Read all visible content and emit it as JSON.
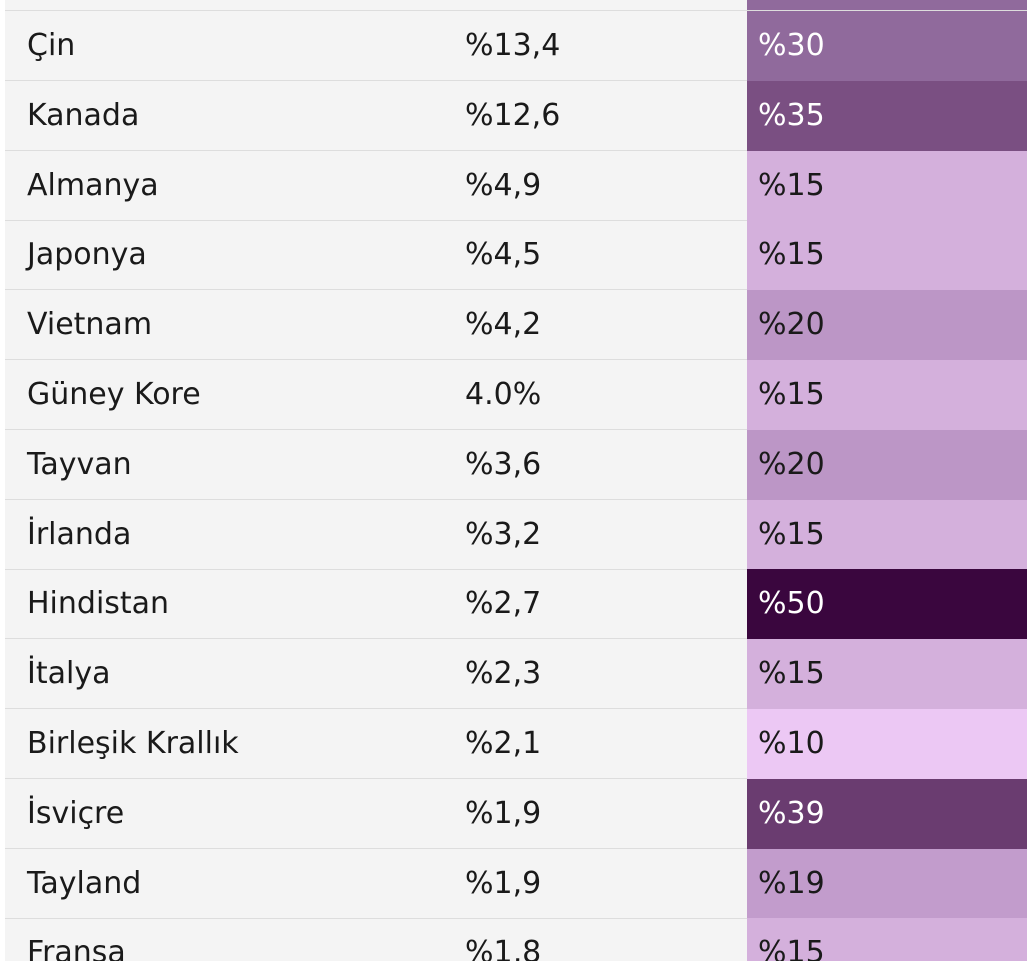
{
  "table": {
    "top_stub": {
      "tariff_color": "#906a9c"
    },
    "rows": [
      {
        "country": "Çin",
        "share": "%13,4",
        "tariff": "%30",
        "tariff_bg": "#906a9c",
        "tariff_fg": "#ffffff"
      },
      {
        "country": "Kanada",
        "share": "%12,6",
        "tariff": "%35",
        "tariff_bg": "#7a4f82",
        "tariff_fg": "#ffffff"
      },
      {
        "country": "Almanya",
        "share": "%4,9",
        "tariff": "%15",
        "tariff_bg": "#d4b0dc",
        "tariff_fg": "#1a1a1a"
      },
      {
        "country": "Japonya",
        "share": "%4,5",
        "tariff": "%15",
        "tariff_bg": "#d4b0dc",
        "tariff_fg": "#1a1a1a"
      },
      {
        "country": "Vietnam",
        "share": "%4,2",
        "tariff": "%20",
        "tariff_bg": "#bc96c6",
        "tariff_fg": "#1a1a1a"
      },
      {
        "country": "Güney Kore",
        "share": "4.0%",
        "tariff": "%15",
        "tariff_bg": "#d4b0dc",
        "tariff_fg": "#1a1a1a"
      },
      {
        "country": "Tayvan",
        "share": "%3,6",
        "tariff": "%20",
        "tariff_bg": "#bc96c6",
        "tariff_fg": "#1a1a1a"
      },
      {
        "country": "İrlanda",
        "share": "%3,2",
        "tariff": "%15",
        "tariff_bg": "#d4b0dc",
        "tariff_fg": "#1a1a1a"
      },
      {
        "country": "Hindistan",
        "share": "%2,7",
        "tariff": "%50",
        "tariff_bg": "#3a063e",
        "tariff_fg": "#ffffff"
      },
      {
        "country": "İtalya",
        "share": "%2,3",
        "tariff": "%15",
        "tariff_bg": "#d4b0dc",
        "tariff_fg": "#1a1a1a"
      },
      {
        "country": "Birleşik Krallık",
        "share": "%2,1",
        "tariff": "%10",
        "tariff_bg": "#ecc8f4",
        "tariff_fg": "#1a1a1a"
      },
      {
        "country": "İsviçre",
        "share": "%1,9",
        "tariff": "%39",
        "tariff_bg": "#6a3c70",
        "tariff_fg": "#ffffff"
      },
      {
        "country": "Tayland",
        "share": "%1,9",
        "tariff": "%19",
        "tariff_bg": "#c29ccc",
        "tariff_fg": "#1a1a1a"
      },
      {
        "country": "Fransa",
        "share": "%1,8",
        "tariff": "%15",
        "tariff_bg": "#d4b0dc",
        "tariff_fg": "#1a1a1a"
      }
    ]
  }
}
